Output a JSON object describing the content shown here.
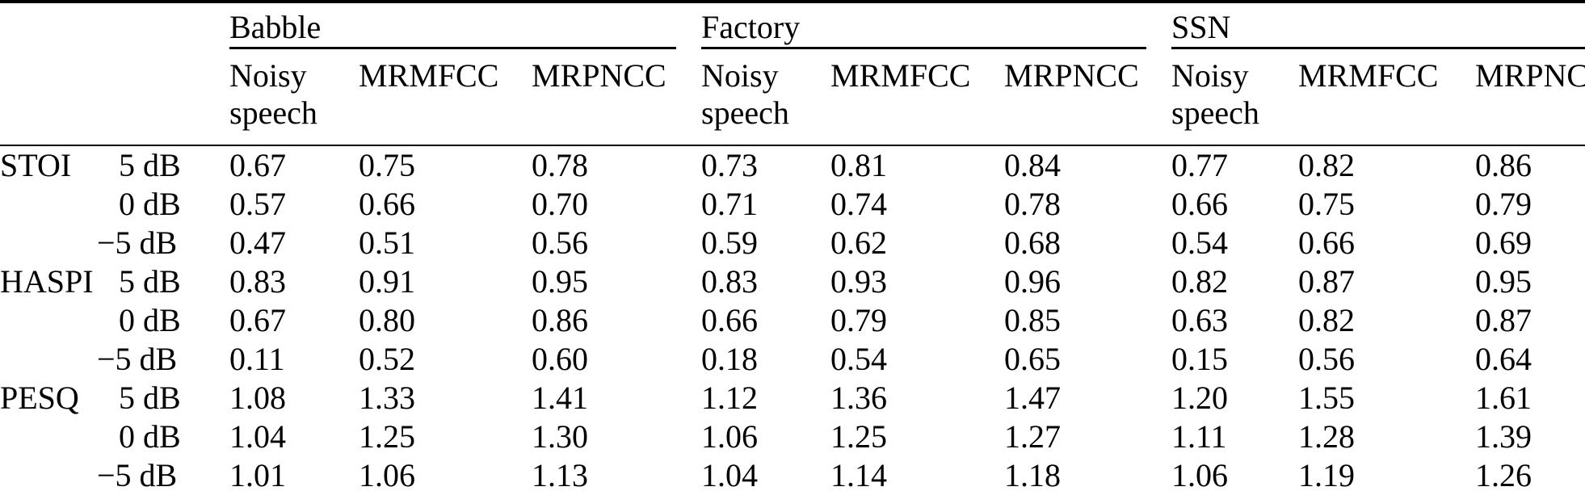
{
  "table": {
    "groups": [
      {
        "label": "Babble"
      },
      {
        "label": "Factory"
      },
      {
        "label": "SSN"
      }
    ],
    "sub_columns": [
      "Noisy speech",
      "MRMFCC",
      "MRPNCC"
    ],
    "metrics": [
      "STOI",
      "HASPI",
      "PESQ"
    ],
    "snr_levels": [
      "5 dB",
      "0 dB",
      "−5 dB"
    ],
    "rows": [
      {
        "metric": "STOI",
        "snr": "5 dB",
        "values": [
          "0.67",
          "0.75",
          "0.78",
          "0.73",
          "0.81",
          "0.84",
          "0.77",
          "0.82",
          "0.86"
        ]
      },
      {
        "metric": "",
        "snr": "0 dB",
        "values": [
          "0.57",
          "0.66",
          "0.70",
          "0.71",
          "0.74",
          "0.78",
          "0.66",
          "0.75",
          "0.79"
        ]
      },
      {
        "metric": "",
        "snr": "−5 dB",
        "values": [
          "0.47",
          "0.51",
          "0.56",
          "0.59",
          "0.62",
          "0.68",
          "0.54",
          "0.66",
          "0.69"
        ]
      },
      {
        "metric": "HASPI",
        "snr": "5 dB",
        "values": [
          "0.83",
          "0.91",
          "0.95",
          "0.83",
          "0.93",
          "0.96",
          "0.82",
          "0.87",
          "0.95"
        ]
      },
      {
        "metric": "",
        "snr": "0 dB",
        "values": [
          "0.67",
          "0.80",
          "0.86",
          "0.66",
          "0.79",
          "0.85",
          "0.63",
          "0.82",
          "0.87"
        ]
      },
      {
        "metric": "",
        "snr": "−5 dB",
        "values": [
          "0.11",
          "0.52",
          "0.60",
          "0.18",
          "0.54",
          "0.65",
          "0.15",
          "0.56",
          "0.64"
        ]
      },
      {
        "metric": "PESQ",
        "snr": "5 dB",
        "values": [
          "1.08",
          "1.33",
          "1.41",
          "1.12",
          "1.36",
          "1.47",
          "1.20",
          "1.55",
          "1.61"
        ]
      },
      {
        "metric": "",
        "snr": "0 dB",
        "values": [
          "1.04",
          "1.25",
          "1.30",
          "1.06",
          "1.25",
          "1.27",
          "1.11",
          "1.28",
          "1.39"
        ]
      },
      {
        "metric": "",
        "snr": "−5 dB",
        "values": [
          "1.01",
          "1.06",
          "1.13",
          "1.04",
          "1.14",
          "1.18",
          "1.06",
          "1.19",
          "1.26"
        ]
      }
    ],
    "text_color": "#000000",
    "background_color": "#ffffff"
  }
}
